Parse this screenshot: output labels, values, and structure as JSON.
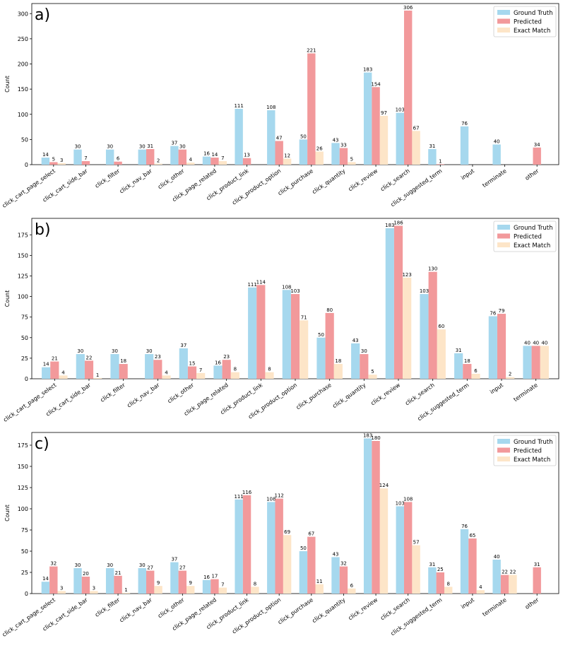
{
  "legend": {
    "entries": [
      "Ground Truth",
      "Predicted",
      "Exact Match"
    ],
    "position": "top-right"
  },
  "colors": {
    "ground_truth": "#a6d8ee",
    "predicted": "#f2999b",
    "exact_match": "#fde5c8",
    "axes": "#000000"
  },
  "chart_data": [
    {
      "type": "bar",
      "label": "a)",
      "ylabel": "Count",
      "ylim": [
        0,
        320
      ],
      "yticks": [
        0,
        50,
        100,
        150,
        200,
        250,
        300
      ],
      "categories": [
        "click_cart_page_select",
        "click_cart_side_bar",
        "click_filter",
        "click_nav_bar",
        "click_other",
        "click_page_related",
        "click_product_link",
        "click_product_option",
        "click_purchase",
        "click_quantity",
        "click_review",
        "click_search",
        "click_suggested_term",
        "input",
        "terminate",
        "other"
      ],
      "series": [
        {
          "name": "Ground Truth",
          "values": [
            14,
            30,
            30,
            30,
            37,
            16,
            111,
            108,
            50,
            43,
            183,
            103,
            31,
            76,
            40,
            0
          ],
          "labels": [
            "14",
            "30",
            "30",
            "30",
            "37",
            "16",
            "111",
            "108",
            "50",
            "43",
            "183",
            "103",
            "31",
            "76",
            "40",
            ""
          ]
        },
        {
          "name": "Predicted",
          "values": [
            5,
            7,
            6,
            31,
            30,
            14,
            13,
            47,
            221,
            33,
            154,
            306,
            1,
            0,
            0,
            34
          ],
          "labels": [
            "5",
            "7",
            "6",
            "31",
            "30",
            "14",
            "13",
            "47",
            "221",
            "33",
            "154",
            "306",
            "1",
            "",
            "",
            "34"
          ]
        },
        {
          "name": "Exact Match",
          "values": [
            3,
            0,
            0,
            2,
            4,
            7,
            0,
            12,
            26,
            5,
            97,
            67,
            0,
            0,
            0,
            0
          ],
          "labels": [
            "3",
            "",
            "",
            "2",
            "4",
            "7",
            "",
            "12",
            "26",
            "5",
            "97",
            "67",
            "",
            "",
            "",
            ""
          ]
        }
      ]
    },
    {
      "type": "bar",
      "label": "b)",
      "ylabel": "Count",
      "ylim": [
        0,
        195
      ],
      "yticks": [
        0,
        25,
        50,
        75,
        100,
        125,
        150,
        175
      ],
      "categories": [
        "click_cart_page_select",
        "click_cart_side_bar",
        "click_filter",
        "click_nav_bar",
        "click_other",
        "click_page_related",
        "click_product_link",
        "click_product_option",
        "click_purchase",
        "click_quantity",
        "click_review",
        "click_search",
        "click_suggested_term",
        "input",
        "terminate"
      ],
      "series": [
        {
          "name": "Ground Truth",
          "values": [
            14,
            30,
            30,
            30,
            37,
            16,
            111,
            108,
            50,
            43,
            183,
            103,
            31,
            76,
            40
          ],
          "labels": [
            "14",
            "30",
            "30",
            "30",
            "37",
            "16",
            "111",
            "108",
            "50",
            "43",
            "183",
            "103",
            "31",
            "76",
            "40"
          ]
        },
        {
          "name": "Predicted",
          "values": [
            21,
            22,
            18,
            23,
            15,
            23,
            114,
            103,
            80,
            30,
            186,
            130,
            18,
            79,
            40
          ],
          "labels": [
            "21",
            "22",
            "18",
            "23",
            "15",
            "23",
            "114",
            "103",
            "80",
            "30",
            "186",
            "130",
            "18",
            "79",
            "40"
          ]
        },
        {
          "name": "Exact Match",
          "values": [
            4,
            1,
            0,
            4,
            7,
            8,
            8,
            71,
            18,
            5,
            123,
            60,
            6,
            2,
            40
          ],
          "labels": [
            "4",
            "1",
            "",
            "4",
            "7",
            "8",
            "8",
            "71",
            "18",
            "5",
            "123",
            "60",
            "6",
            "2",
            "40"
          ]
        }
      ]
    },
    {
      "type": "bar",
      "label": "c)",
      "ylabel": "Count",
      "ylim": [
        0,
        190
      ],
      "yticks": [
        0,
        25,
        50,
        75,
        100,
        125,
        150,
        175
      ],
      "categories": [
        "click_cart_page_select",
        "click_cart_side_bar",
        "click_filter",
        "click_nav_bar",
        "click_other",
        "click_page_related",
        "click_product_link",
        "click_product_option",
        "click_purchase",
        "click_quantity",
        "click_review",
        "click_search",
        "click_suggested_term",
        "input",
        "terminate",
        "other"
      ],
      "series": [
        {
          "name": "Ground Truth",
          "values": [
            14,
            30,
            30,
            30,
            37,
            16,
            111,
            108,
            50,
            43,
            183,
            103,
            31,
            76,
            40,
            0
          ],
          "labels": [
            "14",
            "30",
            "30",
            "30",
            "37",
            "16",
            "111",
            "108",
            "50",
            "43",
            "183",
            "103",
            "31",
            "76",
            "40",
            ""
          ]
        },
        {
          "name": "Predicted",
          "values": [
            32,
            20,
            21,
            27,
            27,
            17,
            116,
            112,
            67,
            32,
            180,
            108,
            25,
            65,
            22,
            31
          ],
          "labels": [
            "32",
            "20",
            "21",
            "27",
            "27",
            "17",
            "116",
            "112",
            "67",
            "32",
            "180",
            "108",
            "25",
            "65",
            "22",
            "31"
          ]
        },
        {
          "name": "Exact Match",
          "values": [
            3,
            3,
            1,
            9,
            9,
            7,
            8,
            69,
            11,
            6,
            124,
            57,
            8,
            4,
            22,
            0
          ],
          "labels": [
            "3",
            "3",
            "1",
            "9",
            "9",
            "7",
            "8",
            "69",
            "11",
            "6",
            "124",
            "57",
            "8",
            "4",
            "22",
            ""
          ]
        }
      ]
    }
  ]
}
